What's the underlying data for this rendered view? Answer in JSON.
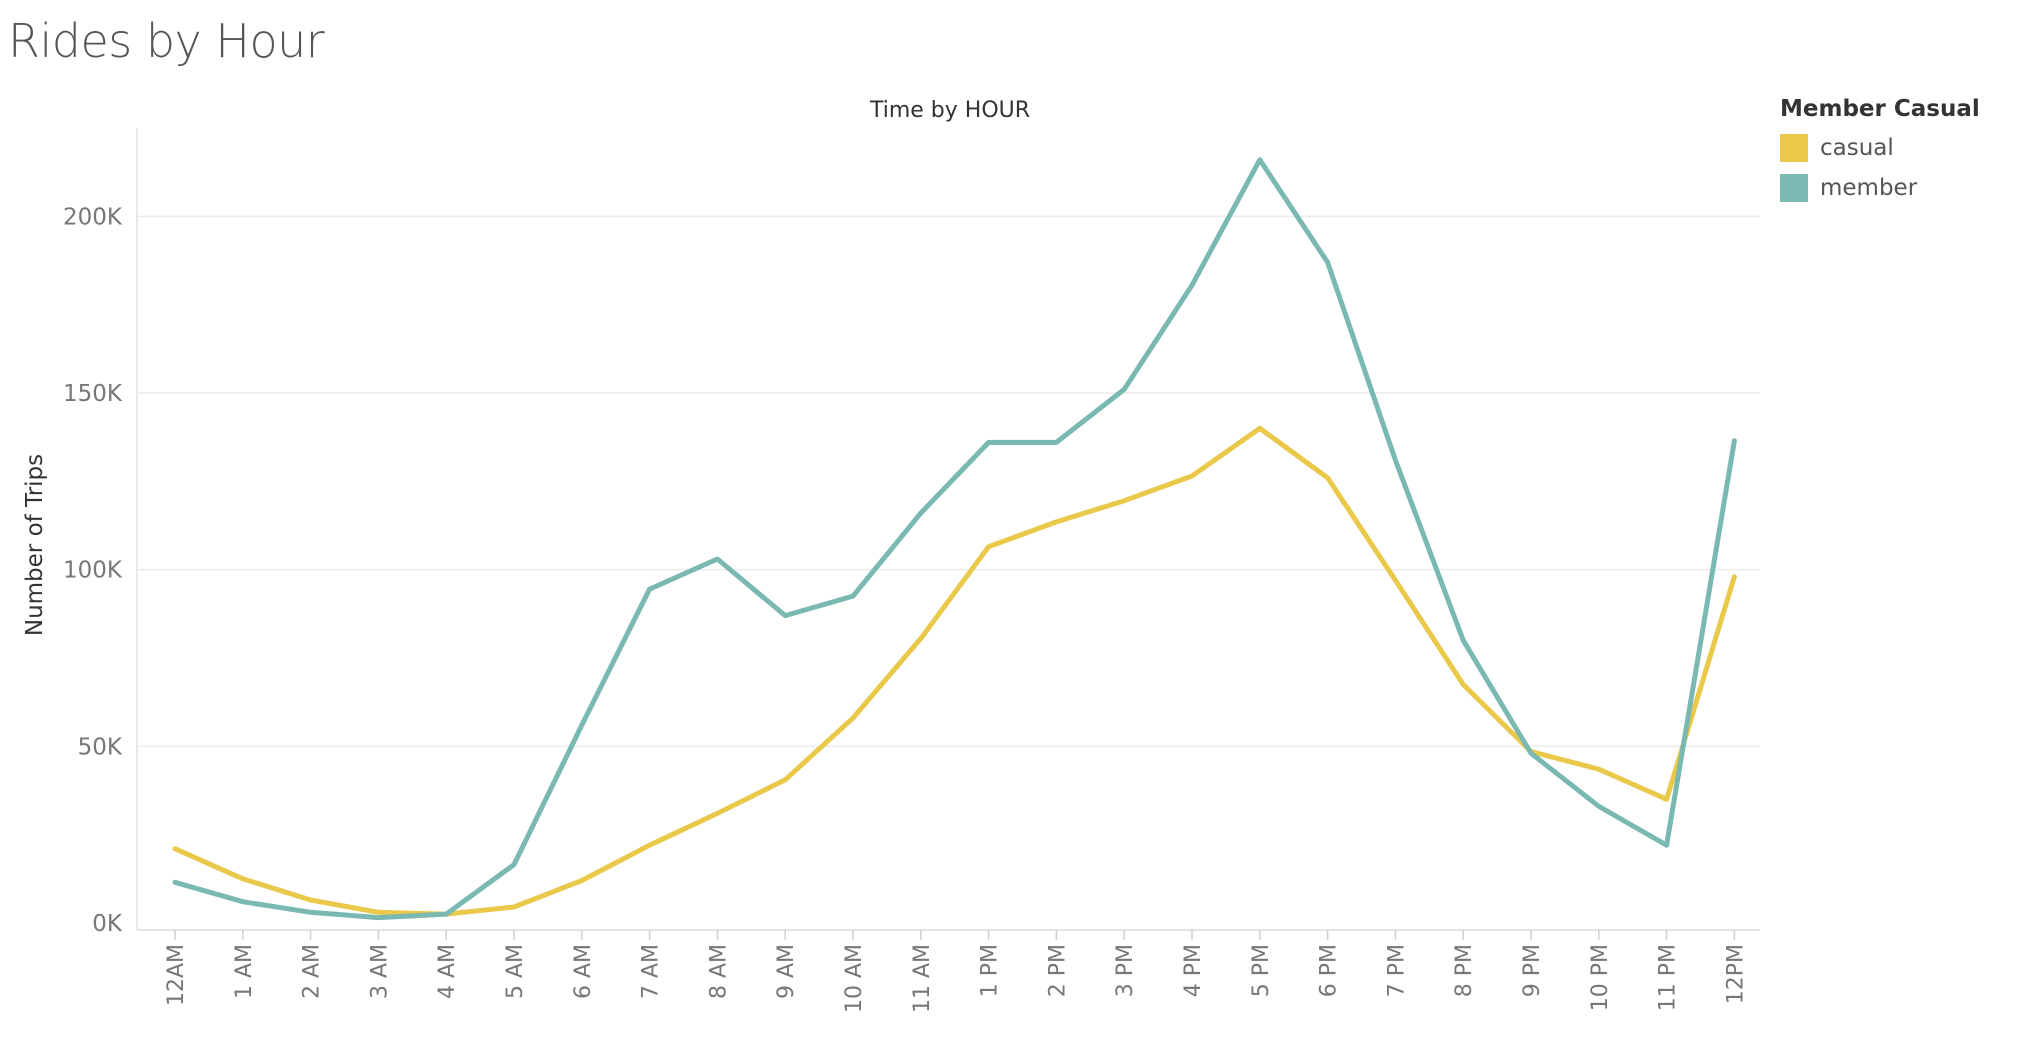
{
  "page": {
    "title": "Rides by Hour"
  },
  "legend": {
    "title": "Member Casual",
    "items": [
      {
        "label": "casual",
        "color": "#E9C84A"
      },
      {
        "label": "member",
        "color": "#7AB8B2"
      }
    ]
  },
  "chart_data": {
    "type": "line",
    "title": "Time by HOUR",
    "xlabel": "",
    "ylabel": "Number of Trips",
    "categories": [
      "12AM",
      "1 AM",
      "2 AM",
      "3 AM",
      "4 AM",
      "5 AM",
      "6 AM",
      "7 AM",
      "8 AM",
      "9 AM",
      "10 AM",
      "11 AM",
      "1 PM",
      "2 PM",
      "3 PM",
      "4 PM",
      "5 PM",
      "6 PM",
      "7 PM",
      "8 PM",
      "9 PM",
      "10 PM",
      "11 PM",
      "12PM"
    ],
    "ylim": [
      -2000,
      225000
    ],
    "yticks": [
      0,
      50000,
      100000,
      150000,
      200000
    ],
    "ytick_labels": [
      "0K",
      "50K",
      "100K",
      "150K",
      "200K"
    ],
    "grid": true,
    "legend_position": "right",
    "series": [
      {
        "name": "casual",
        "color": "#E9C84A",
        "values": [
          21000,
          12500,
          6500,
          3000,
          2500,
          4500,
          12000,
          22000,
          31000,
          40500,
          58000,
          80500,
          106500,
          113500,
          119500,
          126500,
          140000,
          126000,
          97000,
          67500,
          48500,
          43500,
          35000,
          98000
        ]
      },
      {
        "name": "member",
        "color": "#7AB8B2",
        "values": [
          11500,
          6000,
          3000,
          1500,
          2500,
          16500,
          56000,
          94500,
          103000,
          87000,
          92500,
          116000,
          136000,
          136000,
          151000,
          180500,
          216000,
          187000,
          131000,
          80000,
          48000,
          33000,
          22000,
          136500
        ]
      }
    ]
  }
}
